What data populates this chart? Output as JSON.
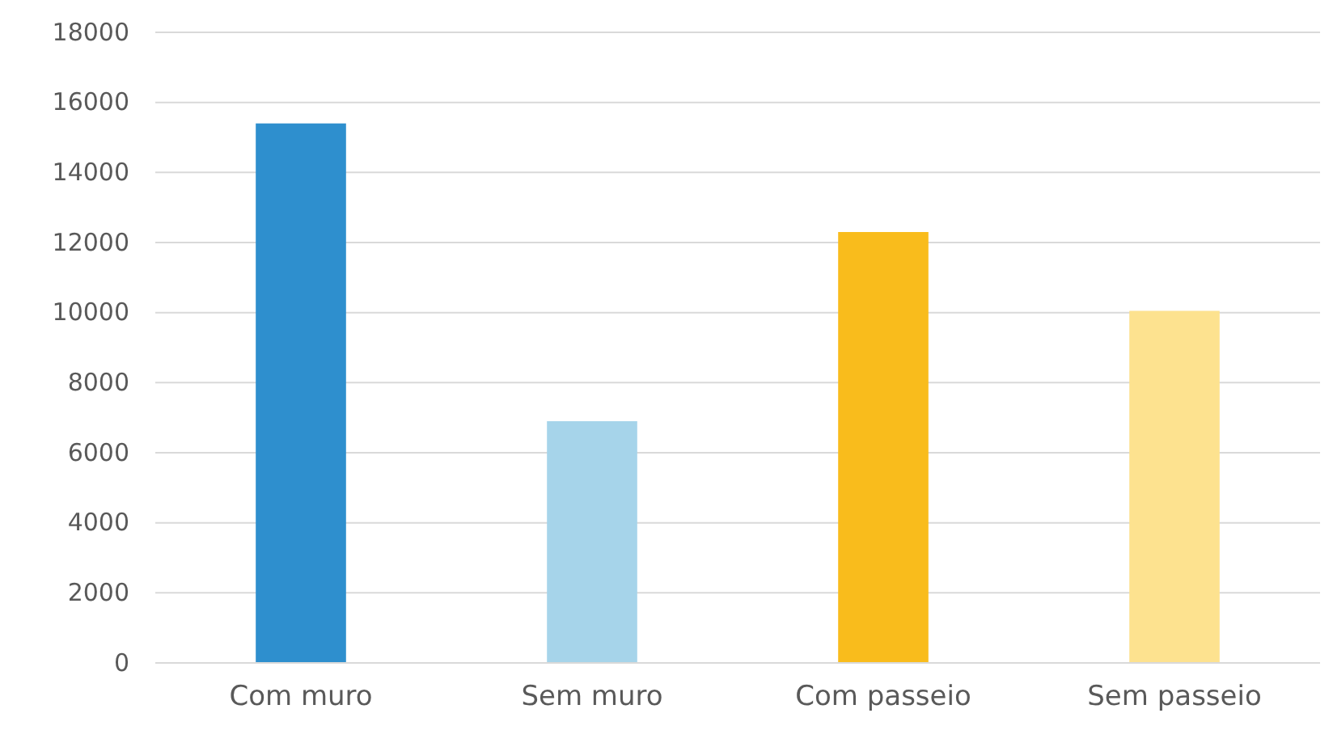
{
  "chart_data": {
    "type": "bar",
    "categories": [
      "Com muro",
      "Sem muro",
      "Com passeio",
      "Sem passeio"
    ],
    "values": [
      15400,
      6900,
      12300,
      10050
    ],
    "colors": [
      "#2e8fce",
      "#a6d4ea",
      "#f9bc1c",
      "#fde28f"
    ],
    "ylim": [
      0,
      18000
    ],
    "yticks": [
      0,
      2000,
      4000,
      6000,
      8000,
      10000,
      12000,
      14000,
      16000,
      18000
    ],
    "grid": "y"
  }
}
